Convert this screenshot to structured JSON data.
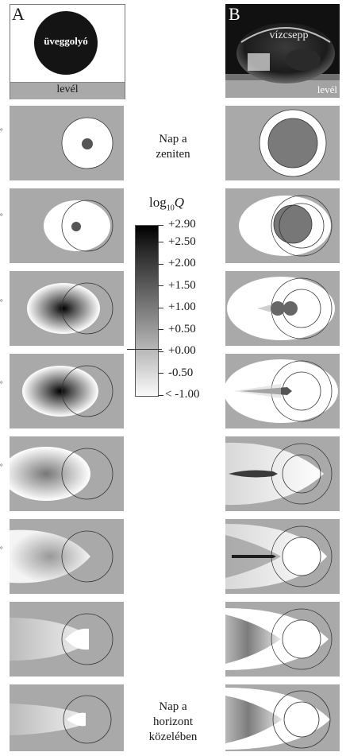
{
  "panel_a": {
    "letter": "A",
    "sphere_label": "üveggolyó",
    "leaf_label": "levél"
  },
  "panel_b": {
    "letter": "B",
    "drop_label": "vízcsepp",
    "leaf_label": "levél"
  },
  "captions": {
    "top_line1": "Nap a",
    "top_line2": "zeniten",
    "bottom_line1": "Nap a",
    "bottom_line2": "horizont",
    "bottom_line3": "közelében"
  },
  "colorbar": {
    "title_prefix": "log",
    "title_sub": "10",
    "title_var": "Q",
    "ticks": [
      "+2.90",
      "+2.50",
      "+2.00",
      "+1.50",
      "+1.00",
      "+0.50",
      "+0.00",
      "-0.50",
      "< -1.00"
    ],
    "tick_values": [
      2.9,
      2.5,
      2.0,
      1.5,
      1.0,
      0.5,
      0.0,
      -0.5,
      -1.0
    ]
  },
  "colors": {
    "leaf_background": "#a9a9a9",
    "sphere": "#141414",
    "photo_background": "#111111"
  }
}
